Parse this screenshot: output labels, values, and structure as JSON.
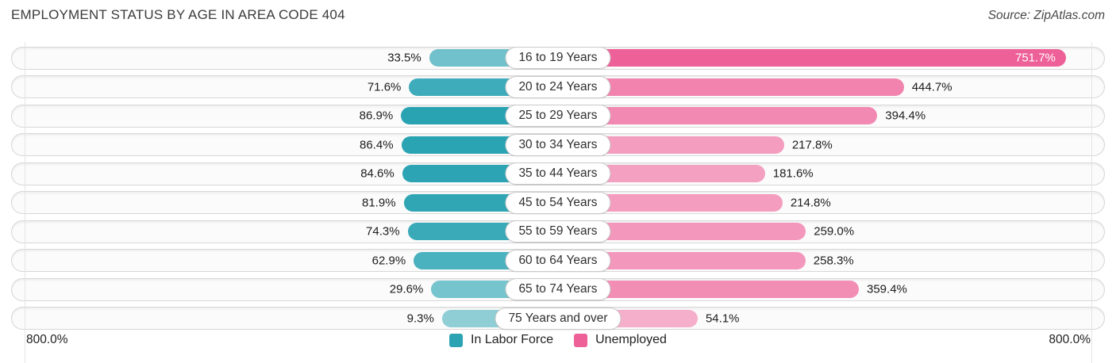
{
  "title": "EMPLOYMENT STATUS BY AGE IN AREA CODE 404",
  "source": "Source: ZipAtlas.com",
  "axis": {
    "left_label": "800.0%",
    "right_label": "800.0%",
    "max_percent": 800
  },
  "legend": {
    "items": [
      {
        "label": "In Labor Force",
        "color": "#2ba3b2"
      },
      {
        "label": "Unemployed",
        "color": "#ee6098"
      }
    ]
  },
  "colors": {
    "labor_force_base": "#29a3b2",
    "unemployed_base": "#ee6098",
    "track_fill": "#fbfbfb",
    "track_border": "#d7d7d7"
  },
  "chart_data": {
    "type": "bar",
    "variant": "diverging-horizontal-tornado",
    "title": "Employment Status by Age in Area Code 404",
    "xlim": [
      -800,
      800
    ],
    "value_suffix": "%",
    "legend_position": "bottom-center",
    "grid": "plot-edge-lines-only",
    "categories": [
      "16 to 19 Years",
      "20 to 24 Years",
      "25 to 29 Years",
      "30 to 34 Years",
      "35 to 44 Years",
      "45 to 54 Years",
      "55 to 59 Years",
      "60 to 64 Years",
      "65 to 74 Years",
      "75 Years and over"
    ],
    "series": [
      {
        "name": "In Labor Force",
        "side": "left",
        "values": [
          33.5,
          71.6,
          86.9,
          86.4,
          84.6,
          81.9,
          74.3,
          62.9,
          29.6,
          9.3
        ]
      },
      {
        "name": "Unemployed",
        "side": "right",
        "values": [
          751.7,
          444.7,
          394.4,
          217.8,
          181.6,
          214.8,
          259.0,
          258.3,
          359.4,
          54.1
        ]
      }
    ],
    "rows": [
      {
        "category": "16 to 19 Years",
        "labor_force": 33.5,
        "labor_force_label": "33.5%",
        "unemployed": 751.7,
        "unemployed_label": "751.7%"
      },
      {
        "category": "20 to 24 Years",
        "labor_force": 71.6,
        "labor_force_label": "71.6%",
        "unemployed": 444.7,
        "unemployed_label": "444.7%"
      },
      {
        "category": "25 to 29 Years",
        "labor_force": 86.9,
        "labor_force_label": "86.9%",
        "unemployed": 394.4,
        "unemployed_label": "394.4%"
      },
      {
        "category": "30 to 34 Years",
        "labor_force": 86.4,
        "labor_force_label": "86.4%",
        "unemployed": 217.8,
        "unemployed_label": "217.8%"
      },
      {
        "category": "35 to 44 Years",
        "labor_force": 84.6,
        "labor_force_label": "84.6%",
        "unemployed": 181.6,
        "unemployed_label": "181.6%"
      },
      {
        "category": "45 to 54 Years",
        "labor_force": 81.9,
        "labor_force_label": "81.9%",
        "unemployed": 214.8,
        "unemployed_label": "214.8%"
      },
      {
        "category": "55 to 59 Years",
        "labor_force": 74.3,
        "labor_force_label": "74.3%",
        "unemployed": 259.0,
        "unemployed_label": "259.0%"
      },
      {
        "category": "60 to 64 Years",
        "labor_force": 62.9,
        "labor_force_label": "62.9%",
        "unemployed": 258.3,
        "unemployed_label": "258.3%"
      },
      {
        "category": "65 to 74 Years",
        "labor_force": 29.6,
        "labor_force_label": "29.6%",
        "unemployed": 359.4,
        "unemployed_label": "359.4%"
      },
      {
        "category": "75 Years and over",
        "labor_force": 9.3,
        "labor_force_label": "9.3%",
        "unemployed": 54.1,
        "unemployed_label": "54.1%"
      }
    ]
  }
}
